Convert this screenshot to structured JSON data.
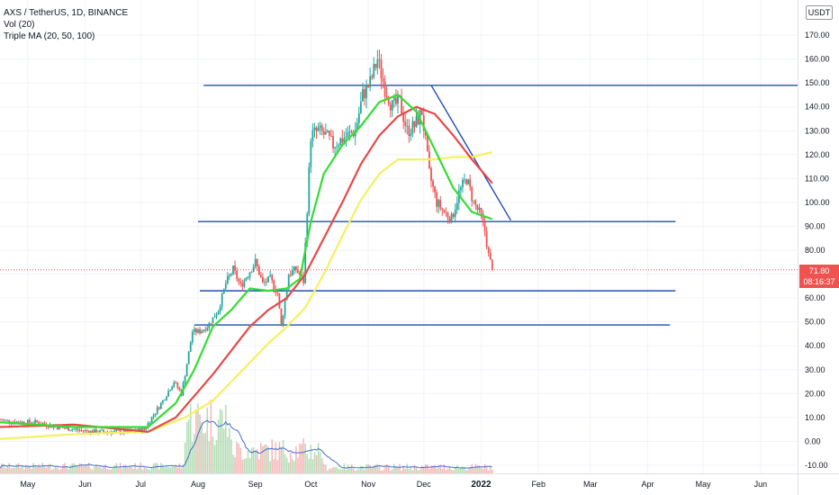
{
  "header": {
    "symbol_line": "AXS / TetherUS, 1D, BINANCE",
    "indicator_vol": "Vol (20)",
    "indicator_ma": "Triple MA (20, 50, 100)",
    "currency": "USDT"
  },
  "last_price": {
    "value": "71.80",
    "countdown": "08:16:37",
    "color": "#ef5350"
  },
  "colors": {
    "up": "#26a69a",
    "down": "#ef5350",
    "ma20": "#33dd33",
    "ma50": "#e84848",
    "ma100": "#f5f060",
    "levels": "#1f4fb3",
    "volume_ma": "#3f6fd0"
  },
  "chart_data": {
    "type": "candlestick",
    "title": "AXS / TetherUS, 1D, BINANCE",
    "ylim": [
      -12,
      180
    ],
    "y_ticks": [
      "-10.00",
      "0.00",
      "10.00",
      "20.00",
      "30.00",
      "40.00",
      "50.00",
      "60.00",
      "70.00",
      "80.00",
      "90.00",
      "100.00",
      "110.00",
      "120.00",
      "130.00",
      "140.00",
      "150.00",
      "160.00",
      "170.00"
    ],
    "x_ticks": [
      {
        "label": "May",
        "day": 15
      },
      {
        "label": "Jun",
        "day": 46
      },
      {
        "label": "Jul",
        "day": 76
      },
      {
        "label": "Aug",
        "day": 107
      },
      {
        "label": "Sep",
        "day": 138
      },
      {
        "label": "Oct",
        "day": 168
      },
      {
        "label": "Nov",
        "day": 199
      },
      {
        "label": "Dec",
        "day": 229
      },
      {
        "label": "2022",
        "day": 260
      },
      {
        "label": "Feb",
        "day": 291
      },
      {
        "label": "Mar",
        "day": 319
      },
      {
        "label": "Apr",
        "day": 350
      },
      {
        "label": "May",
        "day": 380
      },
      {
        "label": "Jun",
        "day": 411
      }
    ],
    "x_range": [
      0,
      431
    ],
    "close_anchors": [
      [
        0,
        9
      ],
      [
        10,
        8
      ],
      [
        20,
        8
      ],
      [
        30,
        6
      ],
      [
        40,
        5
      ],
      [
        50,
        4
      ],
      [
        60,
        4
      ],
      [
        70,
        4
      ],
      [
        78,
        5
      ],
      [
        82,
        10
      ],
      [
        88,
        17
      ],
      [
        94,
        25
      ],
      [
        98,
        20
      ],
      [
        100,
        28
      ],
      [
        104,
        46
      ],
      [
        108,
        46
      ],
      [
        112,
        48
      ],
      [
        118,
        55
      ],
      [
        122,
        66
      ],
      [
        126,
        72
      ],
      [
        130,
        65
      ],
      [
        134,
        70
      ],
      [
        138,
        75
      ],
      [
        142,
        66
      ],
      [
        146,
        68
      ],
      [
        150,
        62
      ],
      [
        152,
        48
      ],
      [
        156,
        70
      ],
      [
        160,
        72
      ],
      [
        164,
        67
      ],
      [
        168,
        128
      ],
      [
        172,
        130
      ],
      [
        176,
        128
      ],
      [
        180,
        124
      ],
      [
        184,
        126
      ],
      [
        188,
        128
      ],
      [
        192,
        130
      ],
      [
        196,
        145
      ],
      [
        200,
        150
      ],
      [
        204,
        160
      ],
      [
        208,
        148
      ],
      [
        212,
        140
      ],
      [
        216,
        142
      ],
      [
        220,
        130
      ],
      [
        224,
        132
      ],
      [
        228,
        138
      ],
      [
        232,
        112
      ],
      [
        236,
        100
      ],
      [
        240,
        96
      ],
      [
        244,
        93
      ],
      [
        248,
        104
      ],
      [
        252,
        110
      ],
      [
        256,
        100
      ],
      [
        260,
        94
      ],
      [
        262,
        88
      ],
      [
        264,
        78
      ],
      [
        266,
        71.8
      ]
    ],
    "ma20_anchors": [
      [
        0,
        8
      ],
      [
        40,
        6
      ],
      [
        80,
        6
      ],
      [
        95,
        16
      ],
      [
        105,
        30
      ],
      [
        115,
        48
      ],
      [
        125,
        55
      ],
      [
        135,
        64
      ],
      [
        145,
        63
      ],
      [
        155,
        64
      ],
      [
        162,
        68
      ],
      [
        168,
        92
      ],
      [
        175,
        112
      ],
      [
        185,
        124
      ],
      [
        195,
        132
      ],
      [
        205,
        142
      ],
      [
        215,
        145
      ],
      [
        225,
        138
      ],
      [
        235,
        122
      ],
      [
        245,
        106
      ],
      [
        255,
        96
      ],
      [
        266,
        93
      ]
    ],
    "ma50_anchors": [
      [
        0,
        6
      ],
      [
        40,
        7
      ],
      [
        80,
        4
      ],
      [
        95,
        10
      ],
      [
        105,
        19
      ],
      [
        115,
        28
      ],
      [
        125,
        38
      ],
      [
        135,
        48
      ],
      [
        145,
        55
      ],
      [
        155,
        60
      ],
      [
        165,
        70
      ],
      [
        175,
        85
      ],
      [
        185,
        100
      ],
      [
        195,
        116
      ],
      [
        205,
        128
      ],
      [
        215,
        136
      ],
      [
        225,
        140
      ],
      [
        235,
        137
      ],
      [
        245,
        128
      ],
      [
        255,
        118
      ],
      [
        266,
        108
      ]
    ],
    "ma100_anchors": [
      [
        0,
        1
      ],
      [
        40,
        3
      ],
      [
        80,
        4
      ],
      [
        100,
        10
      ],
      [
        115,
        17
      ],
      [
        125,
        25
      ],
      [
        135,
        33
      ],
      [
        145,
        41
      ],
      [
        155,
        48
      ],
      [
        165,
        56
      ],
      [
        175,
        70
      ],
      [
        185,
        86
      ],
      [
        195,
        101
      ],
      [
        205,
        112
      ],
      [
        215,
        118
      ],
      [
        225,
        118
      ],
      [
        235,
        118
      ],
      [
        245,
        119
      ],
      [
        255,
        119
      ],
      [
        266,
        121
      ]
    ],
    "horizontal_levels": [
      {
        "value": 149,
        "from_day": 110,
        "to_day": 431
      },
      {
        "value": 92,
        "from_day": 107,
        "to_day": 365
      },
      {
        "value": 63,
        "from_day": 108,
        "to_day": 365
      },
      {
        "value": 48.7,
        "from_day": 105,
        "to_day": 362
      }
    ],
    "trendline": {
      "from": {
        "day": 233,
        "value": 149
      },
      "to": {
        "day": 276,
        "value": 92.5
      }
    },
    "current_price_line": 71.8
  }
}
